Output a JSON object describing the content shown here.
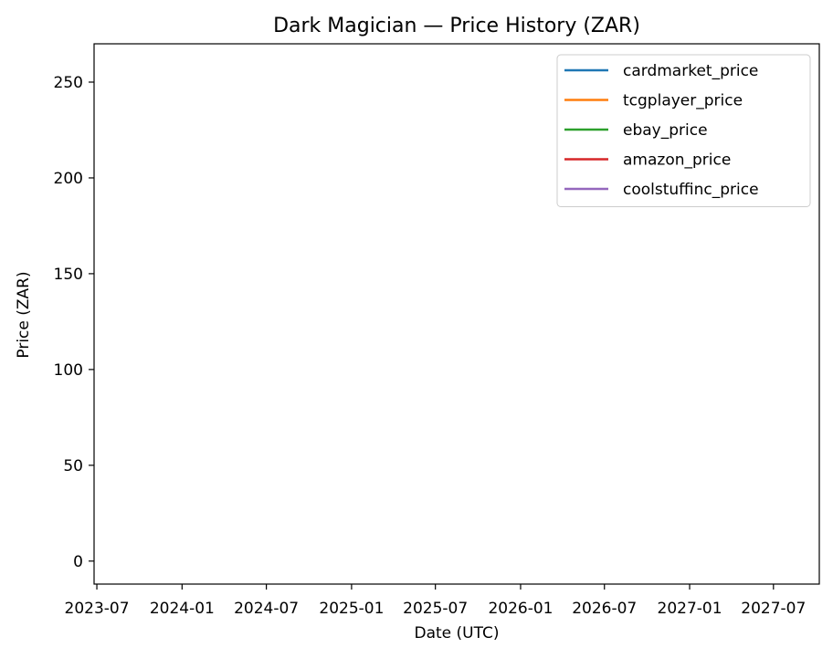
{
  "chart_data": {
    "type": "line",
    "title": "Dark Magician — Price History (ZAR)",
    "xlabel": "Date (UTC)",
    "ylabel": "Price (ZAR)",
    "xlim": [
      "2023-06-25",
      "2027-10-08"
    ],
    "ylim": [
      -12,
      270
    ],
    "x_ticks": [
      "2023-07",
      "2024-01",
      "2024-07",
      "2025-01",
      "2025-07",
      "2026-01",
      "2026-07",
      "2027-01",
      "2027-07"
    ],
    "y_ticks": [
      0,
      50,
      100,
      150,
      200,
      250
    ],
    "grid": false,
    "legend_position": "upper right",
    "series": [
      {
        "name": "cardmarket_price",
        "color": "#1f77b4",
        "x": [],
        "y": []
      },
      {
        "name": "tcgplayer_price",
        "color": "#ff7f0e",
        "x": [],
        "y": []
      },
      {
        "name": "ebay_price",
        "color": "#2ca02c",
        "x": [],
        "y": []
      },
      {
        "name": "amazon_price",
        "color": "#d62728",
        "x": [],
        "y": []
      },
      {
        "name": "coolstuffinc_price",
        "color": "#9467bd",
        "x": [],
        "y": []
      }
    ]
  }
}
